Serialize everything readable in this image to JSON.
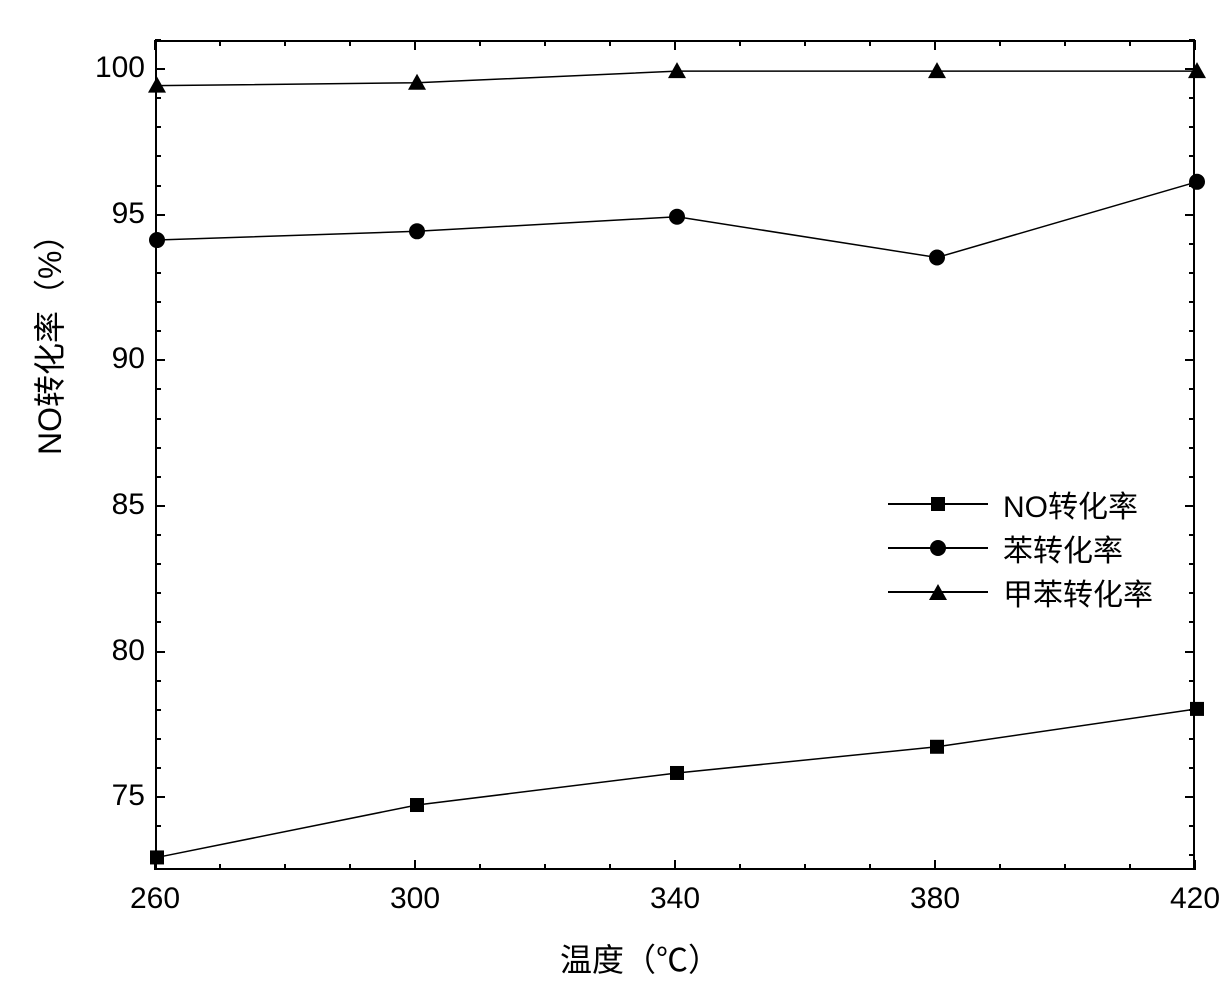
{
  "chart": {
    "type": "line",
    "background_color": "#ffffff",
    "border_color": "#000000",
    "border_width": 2,
    "xlabel": "温度（℃）",
    "ylabel": "NO转化率（%）",
    "label_fontsize": 32,
    "tick_fontsize": 30,
    "xlim": [
      260,
      420
    ],
    "ylim": [
      72.5,
      101
    ],
    "xtick_values": [
      260,
      300,
      340,
      380,
      420
    ],
    "xtick_minor": [
      270,
      280,
      290,
      310,
      320,
      330,
      350,
      360,
      370,
      390,
      400,
      410
    ],
    "ytick_values": [
      75,
      80,
      85,
      90,
      95,
      100
    ],
    "ytick_minor": [
      73,
      74,
      76,
      77,
      78,
      79,
      81,
      82,
      83,
      84,
      86,
      87,
      88,
      89,
      91,
      92,
      93,
      94,
      96,
      97,
      98,
      99,
      101
    ],
    "line_width": 1.5,
    "marker_size": 14,
    "series": [
      {
        "label": "NO转化率",
        "marker": "square",
        "color": "#000000",
        "x": [
          260,
          300,
          340,
          380,
          420
        ],
        "y": [
          73.0,
          74.8,
          75.9,
          76.8,
          78.1
        ]
      },
      {
        "label": "苯转化率",
        "marker": "circle",
        "color": "#000000",
        "x": [
          260,
          300,
          340,
          380,
          420
        ],
        "y": [
          94.2,
          94.5,
          95.0,
          93.6,
          96.2
        ]
      },
      {
        "label": "甲苯转化率",
        "marker": "triangle",
        "color": "#000000",
        "x": [
          260,
          300,
          340,
          380,
          420
        ],
        "y": [
          99.5,
          99.6,
          100.0,
          100.0,
          100.0
        ]
      }
    ],
    "legend": {
      "position": "right-center",
      "fontsize": 30
    }
  }
}
